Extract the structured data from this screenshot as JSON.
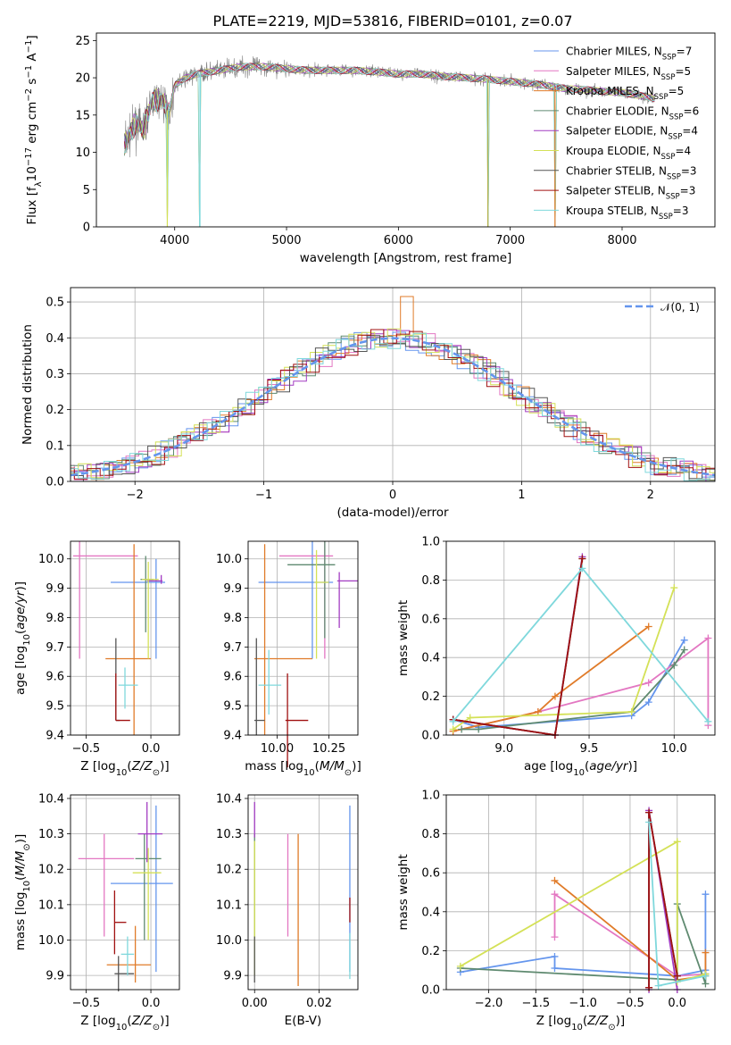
{
  "title": "PLATE=2219, MJD=53816, FIBERID=0101, z=0.07",
  "models": [
    {
      "name": "Chabrier MILES, N_SSP=7",
      "label": "Chabrier MILES, N",
      "sub": "SSP",
      "suffix": "=7",
      "color": "#6495ED"
    },
    {
      "name": "Salpeter MILES, N_SSP=5",
      "label": "Salpeter MILES, N",
      "sub": "SSP",
      "suffix": "=5",
      "color": "#E377C2"
    },
    {
      "name": "Kroupa MILES, N_SSP=5",
      "label": "Kroupa MILES, N",
      "sub": "SSP",
      "suffix": "=5",
      "color": "#E07B29"
    },
    {
      "name": "Chabrier ELODIE, N_SSP=6",
      "label": "Chabrier ELODIE, N",
      "sub": "SSP",
      "suffix": "=6",
      "color": "#5F8A70"
    },
    {
      "name": "Salpeter ELODIE, N_SSP=4",
      "label": "Salpeter ELODIE, N",
      "sub": "SSP",
      "suffix": "=4",
      "color": "#A23CC2"
    },
    {
      "name": "Kroupa ELODIE, N_SSP=4",
      "label": "Kroupa ELODIE, N",
      "sub": "SSP",
      "suffix": "=4",
      "color": "#D4E157"
    },
    {
      "name": "Chabrier STELIB, N_SSP=3",
      "label": "Chabrier STELIB, N",
      "sub": "SSP",
      "suffix": "=3",
      "color": "#555555"
    },
    {
      "name": "Salpeter STELIB, N_SSP=3",
      "label": "Salpeter STELIB, N",
      "sub": "SSP",
      "suffix": "=3",
      "color": "#A01010"
    },
    {
      "name": "Kroupa STELIB, N_SSP=3",
      "label": "Kroupa STELIB, N",
      "sub": "SSP",
      "suffix": "=3",
      "color": "#7FD8DC"
    }
  ],
  "chart_data": [
    {
      "id": "spectrum",
      "type": "line",
      "xlabel": "wavelength [Angstrom, rest frame]",
      "ylabel": "Flux [f_λ 10^-17 erg cm^-2 s^-1 A^-1]",
      "xlim": [
        3300,
        8830
      ],
      "ylim": [
        0,
        26
      ],
      "xticks": [
        4000,
        5000,
        6000,
        7000,
        8000
      ],
      "yticks": [
        0,
        5,
        10,
        15,
        20,
        25
      ],
      "data_series": {
        "name": "data",
        "color": "#808080"
      },
      "continuum": [
        [
          3550,
          11
        ],
        [
          3650,
          14
        ],
        [
          3720,
          13
        ],
        [
          3800,
          17
        ],
        [
          3900,
          17
        ],
        [
          3950,
          15
        ],
        [
          4000,
          19
        ],
        [
          4100,
          20
        ],
        [
          4200,
          20.5
        ],
        [
          4400,
          21
        ],
        [
          4600,
          21.5
        ],
        [
          4800,
          21.5
        ],
        [
          5000,
          21.2
        ],
        [
          5200,
          21
        ],
        [
          5400,
          21
        ],
        [
          5600,
          21
        ],
        [
          5800,
          20.8
        ],
        [
          6000,
          20.5
        ],
        [
          6200,
          20.5
        ],
        [
          6400,
          20.2
        ],
        [
          6600,
          20
        ],
        [
          6800,
          19.8
        ],
        [
          7000,
          19.5
        ],
        [
          7200,
          19.2
        ],
        [
          7400,
          18.8
        ],
        [
          7500,
          18.5
        ],
        [
          7600,
          18.5
        ],
        [
          7800,
          18.2
        ],
        [
          8000,
          18
        ],
        [
          8200,
          17.5
        ],
        [
          8300,
          17.2
        ]
      ],
      "absorption_dips": [
        [
          3934,
          0
        ],
        [
          4226,
          0
        ],
        [
          6800,
          0
        ],
        [
          7400,
          0
        ]
      ],
      "legend": "upper right"
    },
    {
      "id": "residuals",
      "type": "histogram",
      "xlabel": "(data-model)/error",
      "ylabel": "Normed distribution",
      "xlim": [
        -2.5,
        2.5
      ],
      "ylim": [
        0,
        0.54
      ],
      "xticks": [
        -2,
        -1,
        0,
        1,
        2
      ],
      "yticks": [
        0.0,
        0.1,
        0.2,
        0.3,
        0.4,
        0.5
      ],
      "reference": {
        "name": "N(0,1)",
        "label": "𝒩(0, 1)",
        "mean": 0,
        "sigma": 1,
        "color": "#6495ED",
        "style": "dashed"
      },
      "bin_width": 0.1,
      "legend": "upper right"
    },
    {
      "id": "age_vs_Z",
      "type": "errorbar",
      "xlabel": "Z [log10(Z/Z⊙)]",
      "ylabel": "age  [log10(age/yr)]",
      "xlim": [
        -0.62,
        0.22
      ],
      "ylim": [
        9.4,
        10.06
      ],
      "xticks": [
        -0.5,
        0.0
      ],
      "yticks": [
        9.4,
        9.5,
        9.6,
        9.7,
        9.8,
        9.9,
        10.0
      ],
      "points": [
        {
          "model": 0,
          "x": 0.04,
          "y": 9.92,
          "xerr": [
            0.35,
            0.07
          ],
          "yerr": [
            0.26,
            0.08
          ]
        },
        {
          "model": 1,
          "x": -0.55,
          "y": 10.01,
          "xerr": [
            0.05,
            0.45
          ],
          "yerr": [
            0.35,
            0.05
          ]
        },
        {
          "model": 2,
          "x": -0.13,
          "y": 9.66,
          "xerr": [
            0.22,
            0.13
          ],
          "yerr": [
            0.26,
            0.39
          ]
        },
        {
          "model": 3,
          "x": -0.04,
          "y": 9.93,
          "xerr": [
            0.04,
            0.06
          ],
          "yerr": [
            0.18,
            0.08
          ]
        },
        {
          "model": 4,
          "x": 0.08,
          "y": 9.925,
          "xerr": [
            0.11,
            0.01
          ],
          "yerr": [
            0.01,
            0.02
          ]
        },
        {
          "model": 5,
          "x": -0.02,
          "y": 9.93,
          "xerr": [
            0.05,
            0.08
          ],
          "yerr": [
            0.27,
            0.06
          ]
        },
        {
          "model": 6,
          "x": -0.27,
          "y": 9.45,
          "xerr": [
            0.0,
            0.03
          ],
          "yerr": [
            0.0,
            0.28
          ]
        },
        {
          "model": 7,
          "x": -0.27,
          "y": 9.45,
          "xerr": [
            0.0,
            0.11
          ],
          "yerr": [
            0.0,
            0.16
          ]
        },
        {
          "model": 8,
          "x": -0.2,
          "y": 9.57,
          "xerr": [
            0.05,
            0.1
          ],
          "yerr": [
            0.08,
            0.06
          ]
        }
      ]
    },
    {
      "id": "age_vs_mass",
      "type": "errorbar",
      "xlabel": "mass [log10(M/M⊙)]",
      "ylabel": "",
      "xlim": [
        9.86,
        10.39
      ],
      "ylim": [
        9.4,
        10.06
      ],
      "xticks": [
        10.0,
        10.25
      ],
      "yticks": [
        9.4,
        9.5,
        9.6,
        9.7,
        9.8,
        9.9,
        10.0
      ],
      "points": [
        {
          "model": 0,
          "x": 10.17,
          "y": 9.92,
          "xerr": [
            0.26,
            0.1
          ],
          "yerr": [
            0.26,
            0.14
          ]
        },
        {
          "model": 1,
          "x": 10.23,
          "y": 10.01,
          "xerr": [
            0.22,
            0.04
          ],
          "yerr": [
            0.35,
            0.05
          ]
        },
        {
          "model": 2,
          "x": 9.94,
          "y": 9.66,
          "xerr": [
            0.05,
            0.23
          ],
          "yerr": [
            0.26,
            0.39
          ]
        },
        {
          "model": 3,
          "x": 10.23,
          "y": 9.98,
          "xerr": [
            0.18,
            0.05
          ],
          "yerr": [
            0.25,
            0.08
          ]
        },
        {
          "model": 4,
          "x": 10.3,
          "y": 9.925,
          "xerr": [
            0.01,
            0.09
          ],
          "yerr": [
            0.16,
            0.03
          ]
        },
        {
          "model": 5,
          "x": 10.19,
          "y": 9.92,
          "xerr": [
            0.01,
            0.06
          ],
          "yerr": [
            0.26,
            0.11
          ]
        },
        {
          "model": 6,
          "x": 9.9,
          "y": 9.45,
          "xerr": [
            0.01,
            0.04
          ],
          "yerr": [
            0.05,
            0.28
          ]
        },
        {
          "model": 7,
          "x": 10.05,
          "y": 9.45,
          "xerr": [
            0.01,
            0.1
          ],
          "yerr": [
            0.16,
            0.16
          ]
        },
        {
          "model": 8,
          "x": 9.96,
          "y": 9.57,
          "xerr": [
            0.05,
            0.06
          ],
          "yerr": [
            0.1,
            0.12
          ]
        }
      ]
    },
    {
      "id": "weight_vs_age",
      "type": "line",
      "xlabel": "age  [log10(age/yr)]",
      "ylabel": "mass weight",
      "xlim": [
        8.66,
        10.24
      ],
      "ylim": [
        0,
        1.0
      ],
      "xticks": [
        9.0,
        9.5,
        10.0
      ],
      "yticks": [
        0.0,
        0.2,
        0.4,
        0.6,
        0.8,
        1.0
      ],
      "series": [
        {
          "model": 0,
          "x": [
            8.7,
            8.85,
            9.75,
            9.85,
            10.06
          ],
          "y": [
            0.08,
            0.04,
            0.1,
            0.17,
            0.49
          ]
        },
        {
          "model": 1,
          "x": [
            8.7,
            9.2,
            9.85,
            10.2,
            10.2
          ],
          "y": [
            0.02,
            0.12,
            0.27,
            0.5,
            0.05
          ]
        },
        {
          "model": 2,
          "x": [
            8.7,
            9.2,
            9.3,
            9.85
          ],
          "y": [
            0.02,
            0.12,
            0.2,
            0.56
          ]
        },
        {
          "model": 3,
          "x": [
            8.75,
            8.85,
            9.75,
            10.0,
            10.06
          ],
          "y": [
            0.03,
            0.03,
            0.12,
            0.36,
            0.44
          ]
        },
        {
          "model": 4,
          "x": [
            8.7,
            9.3,
            9.46
          ],
          "y": [
            0.08,
            0.0,
            0.92
          ]
        },
        {
          "model": 5,
          "x": [
            8.7,
            8.8,
            9.75,
            10.0
          ],
          "y": [
            0.03,
            0.09,
            0.12,
            0.76
          ]
        },
        {
          "model": 6,
          "x": [
            8.7,
            9.3,
            9.46
          ],
          "y": [
            0.08,
            0.0,
            0.91
          ]
        },
        {
          "model": 7,
          "x": [
            8.7,
            9.3,
            9.46
          ],
          "y": [
            0.08,
            0.0,
            0.91
          ]
        },
        {
          "model": 8,
          "x": [
            8.7,
            9.46,
            10.2
          ],
          "y": [
            0.07,
            0.86,
            0.07
          ]
        }
      ]
    },
    {
      "id": "mass_vs_Z",
      "type": "errorbar",
      "xlabel": "Z [log10(Z/Z⊙)]",
      "ylabel": "mass [log10(M/M⊙)]",
      "xlim": [
        -0.62,
        0.22
      ],
      "ylim": [
        9.86,
        10.41
      ],
      "xticks": [
        -0.5,
        0.0
      ],
      "yticks": [
        9.9,
        10.0,
        10.1,
        10.2,
        10.3,
        10.4
      ],
      "points": [
        {
          "model": 0,
          "x": 0.04,
          "y": 10.16,
          "xerr": [
            0.35,
            0.13
          ],
          "yerr": [
            0.25,
            0.22
          ]
        },
        {
          "model": 1,
          "x": -0.36,
          "y": 10.23,
          "xerr": [
            0.2,
            0.23
          ],
          "yerr": [
            0.22,
            0.07
          ]
        },
        {
          "model": 2,
          "x": -0.12,
          "y": 9.93,
          "xerr": [
            0.22,
            0.12
          ],
          "yerr": [
            0.05,
            0.11
          ]
        },
        {
          "model": 3,
          "x": -0.05,
          "y": 10.23,
          "xerr": [
            0.07,
            0.13
          ],
          "yerr": [
            0.23,
            0.07
          ]
        },
        {
          "model": 4,
          "x": -0.03,
          "y": 10.3,
          "xerr": [
            0.07,
            0.12
          ],
          "yerr": [
            0.08,
            0.09
          ]
        },
        {
          "model": 5,
          "x": -0.02,
          "y": 10.19,
          "xerr": [
            0.12,
            0.1
          ],
          "yerr": [
            0.19,
            0.07
          ]
        },
        {
          "model": 6,
          "x": -0.25,
          "y": 9.905,
          "xerr": [
            0.03,
            0.12
          ],
          "yerr": [
            0.05,
            0.05
          ]
        },
        {
          "model": 7,
          "x": -0.28,
          "y": 10.05,
          "xerr": [
            0.0,
            0.09
          ],
          "yerr": [
            0.09,
            0.09
          ]
        },
        {
          "model": 8,
          "x": -0.18,
          "y": 9.96,
          "xerr": [
            0.05,
            0.05
          ],
          "yerr": [
            0.06,
            0.05
          ]
        }
      ]
    },
    {
      "id": "mass_vs_ebv",
      "type": "errorbar",
      "xlabel": "E(B-V)",
      "ylabel": "",
      "xlim": [
        -0.002,
        0.032
      ],
      "ylim": [
        9.86,
        10.41
      ],
      "xticks": [
        0.0,
        0.02
      ],
      "yticks": [
        9.9,
        10.0,
        10.1,
        10.2,
        10.3,
        10.4
      ],
      "points": [
        {
          "model": 0,
          "x": 0.0295,
          "y": 10.16,
          "xerr": [
            0,
            0
          ],
          "yerr": [
            0.25,
            0.22
          ]
        },
        {
          "model": 1,
          "x": 0.0103,
          "y": 10.23,
          "xerr": [
            0,
            0
          ],
          "yerr": [
            0.22,
            0.07
          ]
        },
        {
          "model": 2,
          "x": 0.0135,
          "y": 10.07,
          "xerr": [
            0,
            0
          ],
          "yerr": [
            0.2,
            0.23
          ]
        },
        {
          "model": 3,
          "x": 0.0,
          "y": 10.23,
          "xerr": [
            0,
            0
          ],
          "yerr": [
            0.23,
            0.07
          ]
        },
        {
          "model": 4,
          "x": 0.0,
          "y": 10.33,
          "xerr": [
            0,
            0
          ],
          "yerr": [
            0.04,
            0.06
          ]
        },
        {
          "model": 5,
          "x": 0.0,
          "y": 10.15,
          "xerr": [
            0,
            0
          ],
          "yerr": [
            0.25,
            0.13
          ]
        },
        {
          "model": 6,
          "x": 0.0,
          "y": 9.95,
          "xerr": [
            0,
            0
          ],
          "yerr": [
            0.07,
            0.06
          ]
        },
        {
          "model": 7,
          "x": 0.0295,
          "y": 10.08,
          "xerr": [
            0,
            0
          ],
          "yerr": [
            0.03,
            0.04
          ]
        },
        {
          "model": 8,
          "x": 0.0295,
          "y": 9.96,
          "xerr": [
            0,
            0
          ],
          "yerr": [
            0.07,
            0.06
          ]
        }
      ]
    },
    {
      "id": "weight_vs_Z",
      "type": "line",
      "xlabel": "Z [log10(Z/Z⊙)]",
      "ylabel": "mass weight",
      "xlim": [
        -2.45,
        0.4
      ],
      "ylim": [
        0,
        1.0
      ],
      "xticks": [
        -2.0,
        -1.5,
        -1.0,
        -0.5,
        0.0
      ],
      "yticks": [
        0.0,
        0.2,
        0.4,
        0.6,
        0.8,
        1.0
      ],
      "series": [
        {
          "model": 0,
          "x": [
            -2.3,
            -1.3,
            -1.3,
            0.0,
            0.3,
            0.3
          ],
          "y": [
            0.09,
            0.17,
            0.11,
            0.07,
            0.1,
            0.49
          ]
        },
        {
          "model": 1,
          "x": [
            -1.3,
            -1.3,
            0.0,
            0.3
          ],
          "y": [
            0.27,
            0.49,
            0.07,
            0.08
          ]
        },
        {
          "model": 2,
          "x": [
            -1.3,
            0.0,
            0.3,
            0.3
          ],
          "y": [
            0.56,
            0.05,
            0.07,
            0.19
          ]
        },
        {
          "model": 3,
          "x": [
            -2.3,
            0.0,
            0.0,
            0.3,
            0.3
          ],
          "y": [
            0.11,
            0.05,
            0.44,
            0.03,
            0.08
          ]
        },
        {
          "model": 4,
          "x": [
            -0.3,
            -0.3,
            0.0
          ],
          "y": [
            0.0,
            0.92,
            0.0
          ]
        },
        {
          "model": 5,
          "x": [
            -2.3,
            0.0,
            0.0,
            0.3
          ],
          "y": [
            0.12,
            0.76,
            0.04,
            0.08
          ]
        },
        {
          "model": 6,
          "x": [
            -0.3,
            -0.3,
            0.0
          ],
          "y": [
            0.01,
            0.91,
            0.07
          ]
        },
        {
          "model": 7,
          "x": [
            -0.3,
            -0.3,
            0.0
          ],
          "y": [
            0.01,
            0.91,
            0.07
          ]
        },
        {
          "model": 8,
          "x": [
            -0.3,
            -0.2,
            0.3
          ],
          "y": [
            0.86,
            0.02,
            0.07
          ]
        }
      ]
    }
  ]
}
